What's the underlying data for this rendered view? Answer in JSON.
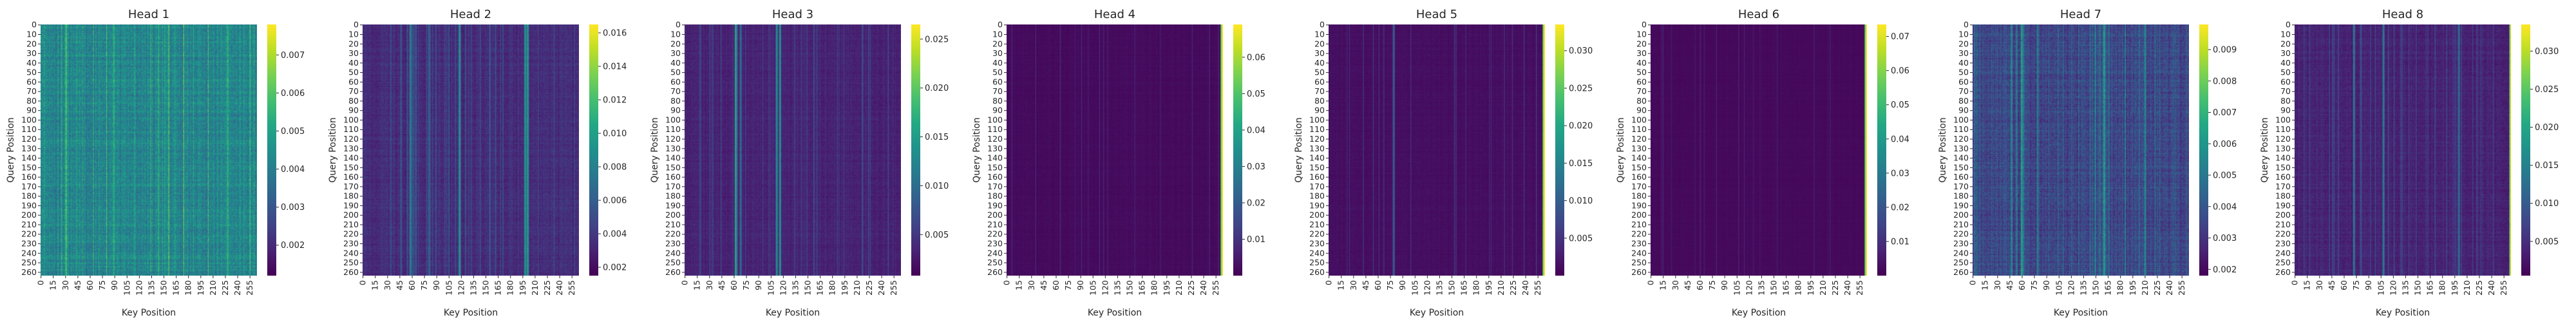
{
  "chart_data": [
    {
      "type": "heatmap",
      "title": "Head 1",
      "xlabel": "Key Position",
      "ylabel": "Query Position",
      "n": 264,
      "x_ticks": [
        "0",
        "15",
        "30",
        "45",
        "60",
        "75",
        "90",
        "105",
        "120",
        "135",
        "150",
        "165",
        "180",
        "195",
        "210",
        "225",
        "240",
        "255"
      ],
      "y_ticks": [
        "0",
        "10",
        "20",
        "30",
        "40",
        "50",
        "60",
        "70",
        "80",
        "90",
        "100",
        "110",
        "120",
        "130",
        "140",
        "150",
        "160",
        "170",
        "180",
        "190",
        "200",
        "210",
        "220",
        "230",
        "240",
        "250",
        "260"
      ],
      "colorbar": {
        "cmap": "viridis",
        "vmin": 0.0012,
        "vmax": 0.0078,
        "ticks": [
          "0.002",
          "0.003",
          "0.004",
          "0.005",
          "0.006",
          "0.007"
        ]
      },
      "pattern": {
        "base": 0.46,
        "noise": 0.17,
        "stripe_frac": 0.14,
        "stripe_amp": 0.22,
        "hot": [],
        "edge_cols": 0
      }
    },
    {
      "type": "heatmap",
      "title": "Head 2",
      "xlabel": "Key Position",
      "ylabel": "Query Position",
      "n": 264,
      "x_ticks": [
        "0",
        "15",
        "30",
        "45",
        "60",
        "75",
        "90",
        "105",
        "120",
        "135",
        "150",
        "165",
        "180",
        "195",
        "210",
        "225",
        "240",
        "255"
      ],
      "y_ticks": [
        "0",
        "10",
        "20",
        "30",
        "40",
        "50",
        "60",
        "70",
        "80",
        "90",
        "100",
        "110",
        "120",
        "130",
        "140",
        "150",
        "160",
        "170",
        "180",
        "190",
        "200",
        "210",
        "220",
        "230",
        "240",
        "250",
        "260"
      ],
      "colorbar": {
        "cmap": "viridis",
        "vmin": 0.0015,
        "vmax": 0.0165,
        "ticks": [
          "0.002",
          "0.004",
          "0.006",
          "0.008",
          "0.010",
          "0.012",
          "0.014",
          "0.016"
        ]
      },
      "pattern": {
        "base": 0.13,
        "noise": 0.07,
        "stripe_frac": 0.12,
        "stripe_amp": 0.18,
        "hot": [
          [
            58,
            0.35
          ],
          [
            118,
            0.32
          ],
          [
            198,
            0.45
          ],
          [
            201,
            0.5
          ]
        ],
        "edge_cols": 0
      }
    },
    {
      "type": "heatmap",
      "title": "Head 3",
      "xlabel": "Key Position",
      "ylabel": "Query Position",
      "n": 264,
      "x_ticks": [
        "0",
        "15",
        "30",
        "45",
        "60",
        "75",
        "90",
        "105",
        "120",
        "135",
        "150",
        "165",
        "180",
        "195",
        "210",
        "225",
        "240",
        "255"
      ],
      "y_ticks": [
        "0",
        "10",
        "20",
        "30",
        "40",
        "50",
        "60",
        "70",
        "80",
        "90",
        "100",
        "110",
        "120",
        "130",
        "140",
        "150",
        "160",
        "170",
        "180",
        "190",
        "200",
        "210",
        "220",
        "230",
        "240",
        "250",
        "260"
      ],
      "colorbar": {
        "cmap": "viridis",
        "vmin": 0.0008,
        "vmax": 0.0265,
        "ticks": [
          "0.005",
          "0.010",
          "0.015",
          "0.020",
          "0.025"
        ]
      },
      "pattern": {
        "base": 0.1,
        "noise": 0.05,
        "stripe_frac": 0.1,
        "stripe_amp": 0.16,
        "hot": [
          [
            62,
            0.55
          ],
          [
            68,
            0.3
          ],
          [
            112,
            0.45
          ],
          [
            116,
            0.5
          ]
        ],
        "edge_cols": 0
      }
    },
    {
      "type": "heatmap",
      "title": "Head 4",
      "xlabel": "Key Position",
      "ylabel": "Query Position",
      "n": 264,
      "x_ticks": [
        "0",
        "15",
        "30",
        "45",
        "60",
        "75",
        "90",
        "105",
        "120",
        "135",
        "150",
        "165",
        "180",
        "195",
        "210",
        "225",
        "240",
        "255"
      ],
      "y_ticks": [
        "0",
        "10",
        "20",
        "30",
        "40",
        "50",
        "60",
        "70",
        "80",
        "90",
        "100",
        "110",
        "120",
        "130",
        "140",
        "150",
        "160",
        "170",
        "180",
        "190",
        "200",
        "210",
        "220",
        "230",
        "240",
        "250",
        "260"
      ],
      "colorbar": {
        "cmap": "viridis",
        "vmin": 0.0,
        "vmax": 0.069,
        "ticks": [
          "0.01",
          "0.02",
          "0.03",
          "0.04",
          "0.05",
          "0.06"
        ]
      },
      "pattern": {
        "base": 0.03,
        "noise": 0.02,
        "stripe_frac": 0.06,
        "stripe_amp": 0.1,
        "hot": [],
        "edge_cols": 3
      }
    },
    {
      "type": "heatmap",
      "title": "Head 5",
      "xlabel": "Key Position",
      "ylabel": "Query Position",
      "n": 264,
      "x_ticks": [
        "0",
        "15",
        "30",
        "45",
        "60",
        "75",
        "90",
        "105",
        "120",
        "135",
        "150",
        "165",
        "180",
        "195",
        "210",
        "225",
        "240",
        "255"
      ],
      "y_ticks": [
        "0",
        "10",
        "20",
        "30",
        "40",
        "50",
        "60",
        "70",
        "80",
        "90",
        "100",
        "110",
        "120",
        "130",
        "140",
        "150",
        "160",
        "170",
        "180",
        "190",
        "200",
        "210",
        "220",
        "230",
        "240",
        "250",
        "260"
      ],
      "colorbar": {
        "cmap": "viridis",
        "vmin": 0.0,
        "vmax": 0.0335,
        "ticks": [
          "0.005",
          "0.010",
          "0.015",
          "0.020",
          "0.025",
          "0.030"
        ]
      },
      "pattern": {
        "base": 0.04,
        "noise": 0.025,
        "stripe_frac": 0.08,
        "stripe_amp": 0.14,
        "hot": [
          [
            79,
            0.3
          ]
        ],
        "edge_cols": 3
      }
    },
    {
      "type": "heatmap",
      "title": "Head 6",
      "xlabel": "Key Position",
      "ylabel": "Query Position",
      "n": 264,
      "x_ticks": [
        "0",
        "15",
        "30",
        "45",
        "60",
        "75",
        "90",
        "105",
        "120",
        "135",
        "150",
        "165",
        "180",
        "195",
        "210",
        "225",
        "240",
        "255"
      ],
      "y_ticks": [
        "0",
        "10",
        "20",
        "30",
        "40",
        "50",
        "60",
        "70",
        "80",
        "90",
        "100",
        "110",
        "120",
        "130",
        "140",
        "150",
        "160",
        "170",
        "180",
        "190",
        "200",
        "210",
        "220",
        "230",
        "240",
        "250",
        "260"
      ],
      "colorbar": {
        "cmap": "viridis",
        "vmin": 0.0,
        "vmax": 0.0735,
        "ticks": [
          "0.01",
          "0.02",
          "0.03",
          "0.04",
          "0.05",
          "0.06",
          "0.07"
        ]
      },
      "pattern": {
        "base": 0.025,
        "noise": 0.015,
        "stripe_frac": 0.06,
        "stripe_amp": 0.08,
        "hot": [],
        "edge_cols": 3
      }
    },
    {
      "type": "heatmap",
      "title": "Head 7",
      "xlabel": "Key Position",
      "ylabel": "Query Position",
      "n": 264,
      "x_ticks": [
        "0",
        "15",
        "30",
        "45",
        "60",
        "75",
        "90",
        "105",
        "120",
        "135",
        "150",
        "165",
        "180",
        "195",
        "210",
        "225",
        "240",
        "255"
      ],
      "y_ticks": [
        "0",
        "10",
        "20",
        "30",
        "40",
        "50",
        "60",
        "70",
        "80",
        "90",
        "100",
        "110",
        "120",
        "130",
        "140",
        "150",
        "160",
        "170",
        "180",
        "190",
        "200",
        "210",
        "220",
        "230",
        "240",
        "250",
        "260"
      ],
      "colorbar": {
        "cmap": "viridis",
        "vmin": 0.0018,
        "vmax": 0.0098,
        "ticks": [
          "0.002",
          "0.003",
          "0.004",
          "0.005",
          "0.006",
          "0.007",
          "0.008",
          "0.009"
        ]
      },
      "pattern": {
        "base": 0.22,
        "noise": 0.14,
        "stripe_frac": 0.14,
        "stripe_amp": 0.24,
        "hot": [
          [
            47,
            0.3
          ],
          [
            60,
            0.3
          ],
          [
            160,
            0.35
          ],
          [
            210,
            0.3
          ]
        ],
        "edge_cols": 0
      }
    },
    {
      "type": "heatmap",
      "title": "Head 8",
      "xlabel": "Key Position",
      "ylabel": "Query Position",
      "n": 264,
      "x_ticks": [
        "0",
        "15",
        "30",
        "45",
        "60",
        "75",
        "90",
        "105",
        "120",
        "135",
        "150",
        "165",
        "180",
        "195",
        "210",
        "225",
        "240",
        "255"
      ],
      "y_ticks": [
        "0",
        "10",
        "20",
        "30",
        "40",
        "50",
        "60",
        "70",
        "80",
        "90",
        "100",
        "110",
        "120",
        "130",
        "140",
        "150",
        "160",
        "170",
        "180",
        "190",
        "200",
        "210",
        "220",
        "230",
        "240",
        "250",
        "260"
      ],
      "colorbar": {
        "cmap": "viridis",
        "vmin": 0.0005,
        "vmax": 0.0335,
        "ticks": [
          "0.005",
          "0.010",
          "0.015",
          "0.020",
          "0.025",
          "0.030"
        ]
      },
      "pattern": {
        "base": 0.1,
        "noise": 0.06,
        "stripe_frac": 0.1,
        "stripe_amp": 0.16,
        "hot": [
          [
            72,
            0.3
          ],
          [
            108,
            0.35
          ],
          [
            200,
            0.3
          ]
        ],
        "edge_cols": 2
      }
    }
  ]
}
